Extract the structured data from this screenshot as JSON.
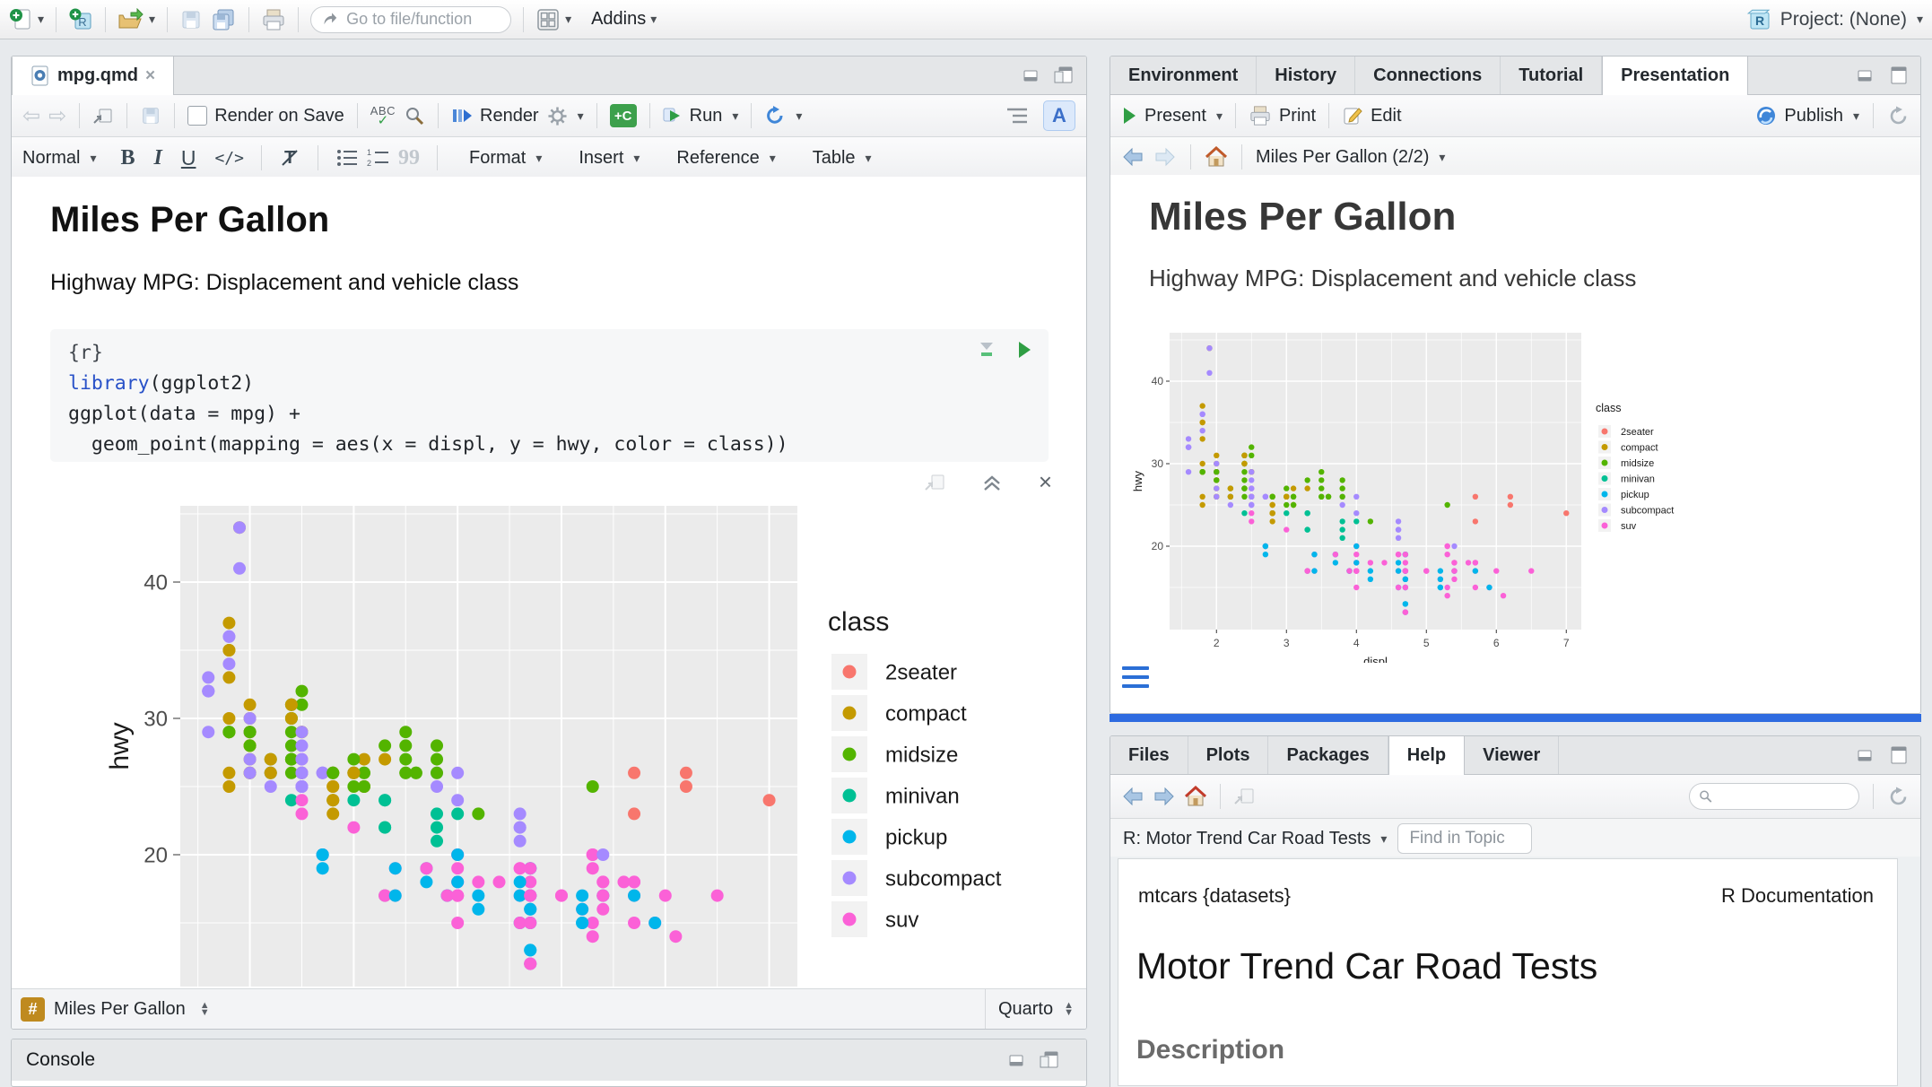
{
  "top_toolbar": {
    "goto_placeholder": "Go to file/function",
    "addins_label": "Addins",
    "project_label": "Project: (None)"
  },
  "editor": {
    "tab": "mpg.qmd",
    "toolbar": {
      "render_on_save": "Render on Save",
      "spellcheck_glyph": "ABC",
      "render": "Render",
      "run": "Run",
      "insert_chunk_glyph": "+C",
      "visual_mode_glyph": "A"
    },
    "format_bar": {
      "paragraph_style": "Normal",
      "bold": "B",
      "italic": "I",
      "underline": "U",
      "code": "</>",
      "quote_glyph": "99",
      "menus": [
        "Format",
        "Insert",
        "Reference",
        "Table"
      ]
    },
    "doc": {
      "title": "Miles Per Gallon",
      "subtitle": "Highway MPG: Displacement and vehicle class"
    },
    "chunk": {
      "line1": "{r}",
      "keyword": "library",
      "line2_rest": "(ggplot2)",
      "line3": "ggplot(data = mpg) +",
      "line4": "  geom_point(mapping = aes(x = displ, y = hwy, color = class))"
    },
    "status_bar": {
      "symbol": "#",
      "location": "Miles Per Gallon",
      "mode": "Quarto"
    }
  },
  "console": {
    "title": "Console"
  },
  "top_right": {
    "tabs": [
      "Environment",
      "History",
      "Connections",
      "Tutorial",
      "Presentation"
    ],
    "active_tab": "Presentation",
    "toolbar": {
      "present": "Present",
      "print": "Print",
      "edit": "Edit",
      "publish": "Publish"
    },
    "nav": {
      "slide_label": "Miles Per Gallon (2/2)"
    },
    "slide": {
      "title": "Miles Per Gallon",
      "subtitle": "Highway MPG: Displacement and vehicle class"
    }
  },
  "bottom_right": {
    "tabs": [
      "Files",
      "Plots",
      "Packages",
      "Help",
      "Viewer"
    ],
    "active_tab": "Help",
    "help": {
      "topic": "R: Motor Trend Car Road Tests",
      "find_placeholder": "Find in Topic",
      "page_header_left": "mtcars {datasets}",
      "page_header_right": "R Documentation",
      "page_title": "Motor Trend Car Road Tests",
      "section": "Description"
    }
  },
  "chart_data": {
    "type": "scatter",
    "title": "",
    "xlabel": "displ",
    "ylabel": "hwy",
    "legend_title": "class",
    "legend_position": "right",
    "grid": true,
    "classes": [
      "2seater",
      "compact",
      "midsize",
      "minivan",
      "pickup",
      "subcompact",
      "suv"
    ],
    "colors": [
      "#F8766D",
      "#C49A00",
      "#53B400",
      "#00C094",
      "#00B6EB",
      "#A58AFF",
      "#FB61D7"
    ],
    "x_ticks": [
      2,
      3,
      4,
      5,
      6,
      7
    ],
    "y_ticks": [
      20,
      30,
      40
    ],
    "xlim": [
      1.33,
      7.27
    ],
    "ylim": [
      10.4,
      45.6
    ],
    "points": [
      [
        1.8,
        29,
        1
      ],
      [
        1.8,
        29,
        1
      ],
      [
        2,
        31,
        1
      ],
      [
        2,
        30,
        1
      ],
      [
        2.8,
        26,
        1
      ],
      [
        2.8,
        26,
        1
      ],
      [
        3.1,
        27,
        1
      ],
      [
        1.8,
        26,
        1
      ],
      [
        1.8,
        25,
        1
      ],
      [
        2,
        28,
        1
      ],
      [
        2,
        27,
        1
      ],
      [
        2.8,
        25,
        1
      ],
      [
        2.8,
        25,
        1
      ],
      [
        3.1,
        25,
        1
      ],
      [
        3.1,
        25,
        1
      ],
      [
        2.8,
        24,
        2
      ],
      [
        3.1,
        25,
        2
      ],
      [
        4.2,
        23,
        2
      ],
      [
        5.3,
        20,
        6
      ],
      [
        5.3,
        15,
        6
      ],
      [
        5.3,
        20,
        6
      ],
      [
        5.7,
        17,
        6
      ],
      [
        6,
        17,
        6
      ],
      [
        5.7,
        26,
        0
      ],
      [
        5.7,
        23,
        0
      ],
      [
        6.2,
        26,
        0
      ],
      [
        6.2,
        25,
        0
      ],
      [
        7,
        24,
        0
      ],
      [
        5.3,
        19,
        6
      ],
      [
        5.3,
        14,
        6
      ],
      [
        5.7,
        15,
        6
      ],
      [
        6.5,
        17,
        6
      ],
      [
        2.4,
        27,
        2
      ],
      [
        2.4,
        30,
        2
      ],
      [
        3.1,
        26,
        2
      ],
      [
        3.5,
        29,
        2
      ],
      [
        3.6,
        26,
        2
      ],
      [
        2.4,
        24,
        3
      ],
      [
        3,
        24,
        3
      ],
      [
        3.3,
        22,
        3
      ],
      [
        3.3,
        22,
        3
      ],
      [
        3.3,
        24,
        3
      ],
      [
        3.3,
        24,
        3
      ],
      [
        3.3,
        17,
        3
      ],
      [
        3.8,
        22,
        3
      ],
      [
        3.8,
        21,
        3
      ],
      [
        3.8,
        23,
        3
      ],
      [
        4,
        23,
        3
      ],
      [
        3.7,
        19,
        4
      ],
      [
        3.7,
        18,
        4
      ],
      [
        3.9,
        17,
        4
      ],
      [
        3.9,
        17,
        4
      ],
      [
        4.7,
        19,
        4
      ],
      [
        4.7,
        19,
        4
      ],
      [
        4.7,
        12,
        4
      ],
      [
        5.2,
        17,
        4
      ],
      [
        5.2,
        15,
        4
      ],
      [
        3.9,
        17,
        6
      ],
      [
        4.7,
        17,
        6
      ],
      [
        4.7,
        12,
        6
      ],
      [
        4.7,
        17,
        6
      ],
      [
        4.7,
        16,
        6
      ],
      [
        4.7,
        18,
        6
      ],
      [
        4.7,
        15,
        6
      ],
      [
        5.2,
        16,
        6
      ],
      [
        5.9,
        15,
        6
      ],
      [
        4.7,
        17,
        4
      ],
      [
        4.7,
        15,
        4
      ],
      [
        4.7,
        13,
        4
      ],
      [
        4.7,
        13,
        4
      ],
      [
        4.7,
        17,
        4
      ],
      [
        4.7,
        16,
        4
      ],
      [
        4.7,
        16,
        4
      ],
      [
        5.2,
        15,
        4
      ],
      [
        5.2,
        16,
        4
      ],
      [
        5.7,
        17,
        4
      ],
      [
        5.9,
        15,
        4
      ],
      [
        4.6,
        17,
        6
      ],
      [
        5.4,
        17,
        6
      ],
      [
        5.4,
        18,
        6
      ],
      [
        4,
        17,
        6
      ],
      [
        4,
        17,
        6
      ],
      [
        4,
        18,
        6
      ],
      [
        4,
        17,
        6
      ],
      [
        4.6,
        19,
        6
      ],
      [
        5,
        17,
        6
      ],
      [
        4.2,
        17,
        4
      ],
      [
        4.2,
        16,
        4
      ],
      [
        4.6,
        18,
        4
      ],
      [
        4.6,
        15,
        4
      ],
      [
        4.6,
        17,
        4
      ],
      [
        5.4,
        17,
        4
      ],
      [
        3.8,
        26,
        5
      ],
      [
        3.8,
        25,
        5
      ],
      [
        4,
        26,
        5
      ],
      [
        4,
        24,
        5
      ],
      [
        4.6,
        21,
        5
      ],
      [
        4.6,
        22,
        5
      ],
      [
        4.6,
        23,
        5
      ],
      [
        4.6,
        22,
        5
      ],
      [
        5.4,
        20,
        5
      ],
      [
        1.6,
        33,
        5
      ],
      [
        1.6,
        32,
        5
      ],
      [
        1.6,
        32,
        5
      ],
      [
        1.6,
        29,
        5
      ],
      [
        1.6,
        32,
        5
      ],
      [
        1.8,
        34,
        5
      ],
      [
        1.8,
        36,
        5
      ],
      [
        1.8,
        36,
        5
      ],
      [
        2,
        29,
        5
      ],
      [
        2.4,
        26,
        2
      ],
      [
        2.4,
        27,
        2
      ],
      [
        2.4,
        30,
        2
      ],
      [
        2.4,
        31,
        2
      ],
      [
        2.5,
        26,
        2
      ],
      [
        2.5,
        26,
        2
      ],
      [
        3.3,
        28,
        2
      ],
      [
        2,
        26,
        5
      ],
      [
        2,
        27,
        5
      ],
      [
        2,
        30,
        5
      ],
      [
        2,
        29,
        5
      ],
      [
        2.7,
        26,
        5
      ],
      [
        2.7,
        26,
        5
      ],
      [
        2.7,
        26,
        5
      ],
      [
        3,
        22,
        6
      ],
      [
        3.7,
        19,
        6
      ],
      [
        4,
        20,
        6
      ],
      [
        4.7,
        17,
        6
      ],
      [
        4.7,
        12,
        6
      ],
      [
        4.7,
        19,
        6
      ],
      [
        5.7,
        18,
        6
      ],
      [
        6.1,
        14,
        6
      ],
      [
        4,
        15,
        6
      ],
      [
        4.2,
        18,
        6
      ],
      [
        4.4,
        18,
        6
      ],
      [
        4.6,
        15,
        6
      ],
      [
        5.4,
        17,
        6
      ],
      [
        5.4,
        16,
        6
      ],
      [
        5.4,
        18,
        6
      ],
      [
        4,
        17,
        6
      ],
      [
        4,
        19,
        6
      ],
      [
        4.6,
        19,
        6
      ],
      [
        5,
        17,
        6
      ],
      [
        2.4,
        29,
        2
      ],
      [
        2.4,
        27,
        2
      ],
      [
        2.5,
        31,
        2
      ],
      [
        2.5,
        32,
        2
      ],
      [
        3.5,
        27,
        2
      ],
      [
        3.5,
        26,
        2
      ],
      [
        3,
        26,
        2
      ],
      [
        3,
        25,
        2
      ],
      [
        3.5,
        28,
        2
      ],
      [
        3.3,
        17,
        6
      ],
      [
        3.3,
        17,
        6
      ],
      [
        4,
        18,
        6
      ],
      [
        5.6,
        18,
        6
      ],
      [
        3.1,
        26,
        2
      ],
      [
        3.8,
        27,
        2
      ],
      [
        3.8,
        28,
        2
      ],
      [
        3.8,
        26,
        2
      ],
      [
        5.3,
        25,
        2
      ],
      [
        2.5,
        26,
        6
      ],
      [
        2.5,
        24,
        6
      ],
      [
        2.5,
        26,
        6
      ],
      [
        2.5,
        23,
        6
      ],
      [
        2.5,
        25,
        6
      ],
      [
        2.5,
        27,
        6
      ],
      [
        2.2,
        26,
        5
      ],
      [
        2.2,
        25,
        5
      ],
      [
        2.5,
        25,
        5
      ],
      [
        2.5,
        25,
        5
      ],
      [
        2.5,
        26,
        5
      ],
      [
        2.5,
        27,
        5
      ],
      [
        2.5,
        25,
        5
      ],
      [
        2.5,
        26,
        5
      ],
      [
        2.7,
        20,
        6
      ],
      [
        2.7,
        20,
        6
      ],
      [
        3.4,
        19,
        6
      ],
      [
        3.4,
        17,
        6
      ],
      [
        4,
        20,
        6
      ],
      [
        4.7,
        17,
        6
      ],
      [
        2.2,
        26,
        2
      ],
      [
        2.2,
        27,
        2
      ],
      [
        2.4,
        28,
        2
      ],
      [
        2.4,
        31,
        2
      ],
      [
        3,
        26,
        2
      ],
      [
        3,
        27,
        2
      ],
      [
        3.5,
        26,
        2
      ],
      [
        2.2,
        26,
        1
      ],
      [
        2.2,
        27,
        1
      ],
      [
        2.4,
        30,
        1
      ],
      [
        2.4,
        31,
        1
      ],
      [
        3,
        26,
        1
      ],
      [
        3,
        26,
        1
      ],
      [
        3.3,
        27,
        1
      ],
      [
        1.8,
        30,
        1
      ],
      [
        1.8,
        33,
        1
      ],
      [
        1.8,
        35,
        1
      ],
      [
        1.8,
        35,
        1
      ],
      [
        1.8,
        37,
        1
      ],
      [
        4.7,
        15,
        6
      ],
      [
        5.7,
        18,
        6
      ],
      [
        2.7,
        20,
        4
      ],
      [
        2.7,
        19,
        4
      ],
      [
        2.7,
        20,
        4
      ],
      [
        3.4,
        17,
        4
      ],
      [
        3.4,
        19,
        4
      ],
      [
        4,
        18,
        4
      ],
      [
        4,
        20,
        4
      ],
      [
        2,
        29,
        1
      ],
      [
        2,
        26,
        1
      ],
      [
        2,
        29,
        1
      ],
      [
        2,
        28,
        1
      ],
      [
        2.8,
        24,
        1
      ],
      [
        1.9,
        44,
        1
      ],
      [
        2,
        29,
        1
      ],
      [
        2,
        26,
        1
      ],
      [
        2,
        29,
        1
      ],
      [
        2,
        28,
        1
      ],
      [
        2.5,
        29,
        1
      ],
      [
        2.5,
        29,
        1
      ],
      [
        2.8,
        24,
        1
      ],
      [
        2.8,
        23,
        1
      ],
      [
        1.9,
        44,
        5
      ],
      [
        1.9,
        41,
        5
      ],
      [
        2,
        29,
        5
      ],
      [
        2,
        26,
        5
      ],
      [
        2.5,
        28,
        5
      ],
      [
        2.5,
        29,
        5
      ],
      [
        1.8,
        29,
        2
      ],
      [
        1.8,
        29,
        2
      ],
      [
        2,
        28,
        2
      ],
      [
        2,
        29,
        2
      ],
      [
        2.8,
        26,
        2
      ],
      [
        2.8,
        26,
        2
      ],
      [
        3.6,
        26,
        2
      ]
    ]
  }
}
